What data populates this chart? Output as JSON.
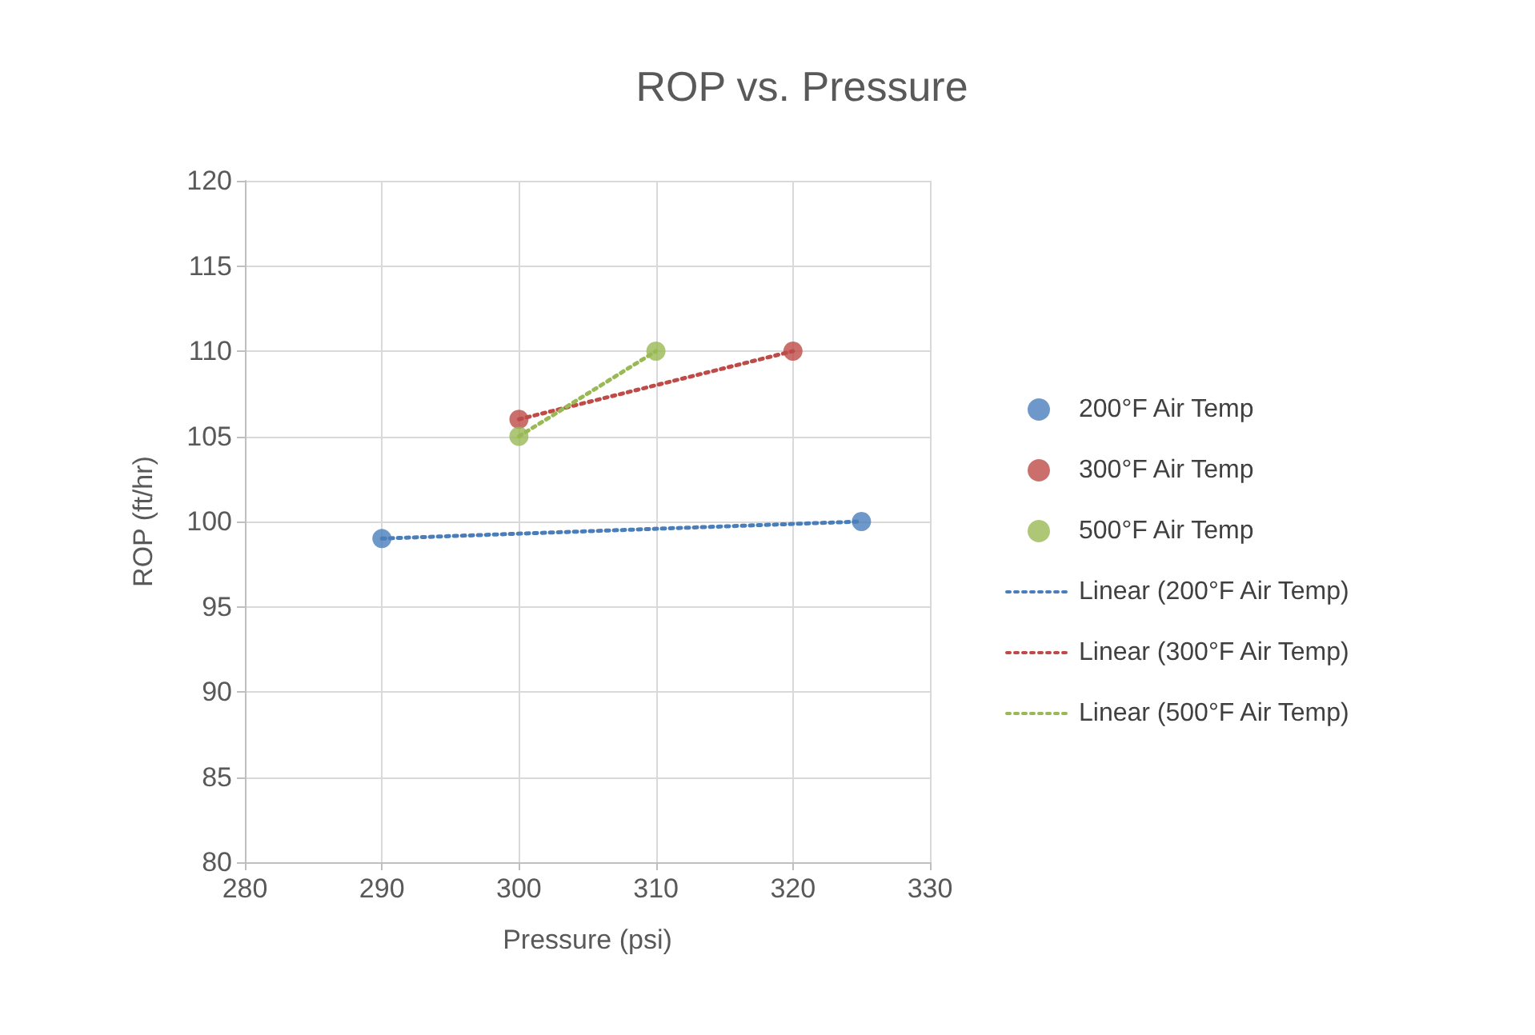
{
  "chart_data": {
    "type": "scatter",
    "title": "ROP vs. Pressure",
    "xlabel": "Pressure (psi)",
    "ylabel": "ROP (ft/hr)",
    "xlim": [
      280,
      330
    ],
    "xticks": [
      280,
      290,
      300,
      310,
      320,
      330
    ],
    "ylim": [
      80,
      120
    ],
    "yticks": [
      80,
      85,
      90,
      95,
      100,
      105,
      110,
      115,
      120
    ],
    "grid": true,
    "legend": "right",
    "marker": "circle",
    "series": [
      {
        "name": "200°F Air Temp",
        "type": "scatter",
        "color": "#4a7ebb",
        "x": [
          290,
          325
        ],
        "values": [
          99,
          100
        ]
      },
      {
        "name": "300°F Air Temp",
        "type": "scatter",
        "color": "#be4b48",
        "x": [
          300,
          320
        ],
        "values": [
          106,
          110
        ]
      },
      {
        "name": "500°F Air Temp",
        "type": "scatter",
        "color": "#98b954",
        "x": [
          300,
          310
        ],
        "values": [
          105,
          110
        ]
      },
      {
        "name": "Linear (200°F Air Temp)",
        "type": "line",
        "line_style": "dotted",
        "marker": "none",
        "color": "#4a7ebb",
        "x": [
          290,
          325
        ],
        "values": [
          99,
          100
        ]
      },
      {
        "name": "Linear (300°F Air Temp)",
        "type": "line",
        "line_style": "dotted",
        "marker": "none",
        "color": "#be4b48",
        "x": [
          300,
          320
        ],
        "values": [
          106,
          110
        ]
      },
      {
        "name": "Linear (500°F Air Temp)",
        "type": "line",
        "line_style": "dotted",
        "marker": "none",
        "color": "#98b954",
        "x": [
          300,
          310
        ],
        "values": [
          105,
          110
        ]
      }
    ]
  }
}
